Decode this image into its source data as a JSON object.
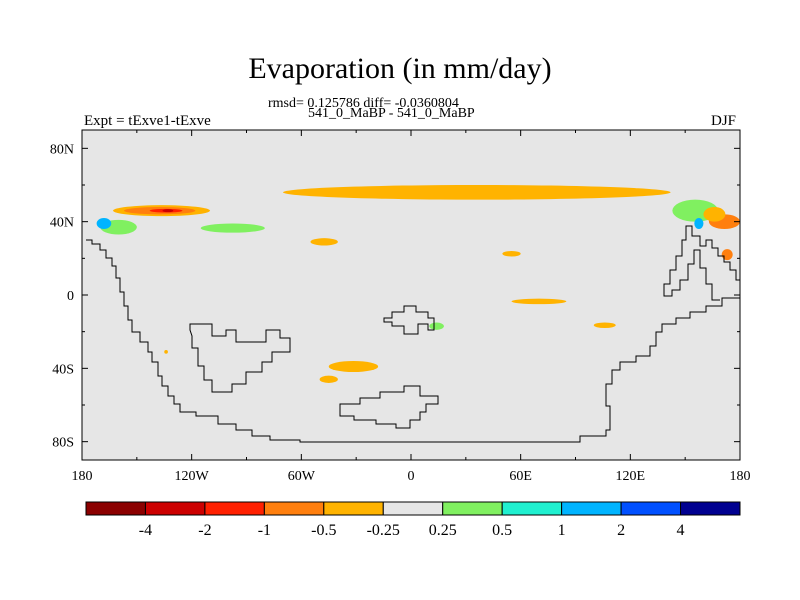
{
  "title": "Evaporation (in mm/day)",
  "stats_line": "rmsd= 0.125786 diff= -0.0360804",
  "runs_line": "541_0_MaBP - 541_0_MaBP",
  "left_label": "Expt = tExve1-tExve",
  "right_label": "DJF",
  "chart_data": {
    "type": "heatmap",
    "title": "Evaporation (in mm/day)",
    "map_projection": "cylindrical equidistant",
    "xlim": [
      -180,
      180
    ],
    "ylim": [
      -90,
      90
    ],
    "x_ticks": [
      -180,
      -120,
      -60,
      0,
      60,
      120,
      180
    ],
    "x_tick_labels": [
      "180",
      "120W",
      "60W",
      "0",
      "60E",
      "120E",
      "180"
    ],
    "y_ticks": [
      80,
      40,
      0,
      -40,
      -80
    ],
    "y_tick_labels": [
      "80N",
      "40N",
      "0",
      "40S",
      "80S"
    ],
    "missing_color": "#e6e6e6",
    "colorbar": {
      "levels": [
        -4,
        -2,
        -1,
        -0.5,
        -0.25,
        0.25,
        0.5,
        1,
        2,
        4
      ],
      "level_labels": [
        "-4",
        "-2",
        "-1",
        "-0.5",
        "-0.25",
        "0.25",
        "0.5",
        "1",
        "2",
        "4"
      ],
      "colors": [
        "#8b0000",
        "#cc0000",
        "#ff2000",
        "#ff7f0e",
        "#ffb300",
        "#e6e6e6",
        "#80f060",
        "#20f0d0",
        "#00b4ff",
        "#0050ff",
        "#000090"
      ]
    },
    "regions": [
      {
        "cls": "-0.5 to -0.25",
        "color": "#ffb300",
        "lon": [
          -70,
          142
        ],
        "lat": [
          52,
          60
        ]
      },
      {
        "cls": "-0.5 to -0.25",
        "color": "#ffb300",
        "lon": [
          -163,
          -110
        ],
        "lat": [
          43,
          49
        ]
      },
      {
        "cls": "-1 to -0.5",
        "color": "#ff7f0e",
        "lon": [
          -157,
          -118
        ],
        "lat": [
          44,
          48
        ]
      },
      {
        "cls": "-2 to -1",
        "color": "#ff2000",
        "lon": [
          -143,
          -125
        ],
        "lat": [
          45,
          47
        ]
      },
      {
        "cls": "-4 to -2",
        "color": "#cc0000",
        "lon": [
          -136,
          -130
        ],
        "lat": [
          45.5,
          46.5
        ]
      },
      {
        "cls": "0.25 to 0.5",
        "color": "#80f060",
        "lon": [
          -170,
          -150
        ],
        "lat": [
          33,
          41
        ]
      },
      {
        "cls": "0.25 to 0.5",
        "color": "#80f060",
        "lon": [
          -115,
          -80
        ],
        "lat": [
          34,
          39
        ]
      },
      {
        "cls": "1 to 2",
        "color": "#00b4ff",
        "lon": [
          -172,
          -164
        ],
        "lat": [
          36,
          42
        ]
      },
      {
        "cls": "-0.5 to -0.25",
        "color": "#ffb300",
        "lon": [
          -55,
          -40
        ],
        "lat": [
          27,
          31
        ]
      },
      {
        "cls": "-0.5 to -0.25",
        "color": "#ffb300",
        "lon": [
          50,
          60
        ],
        "lat": [
          21,
          24
        ]
      },
      {
        "cls": "-0.5 to -0.25",
        "color": "#ffb300",
        "lon": [
          55,
          85
        ],
        "lat": [
          -5,
          -2
        ]
      },
      {
        "cls": "-0.5 to -0.25",
        "color": "#ffb300",
        "lon": [
          100,
          112
        ],
        "lat": [
          -18,
          -15
        ]
      },
      {
        "cls": "0.25 to 0.5",
        "color": "#80f060",
        "lon": [
          10,
          18
        ],
        "lat": [
          -19,
          -15
        ]
      },
      {
        "cls": "-0.5 to -0.25",
        "color": "#ffb300",
        "lon": [
          -45,
          -18
        ],
        "lat": [
          -42,
          -36
        ]
      },
      {
        "cls": "-0.5 to -0.25",
        "color": "#ffb300",
        "lon": [
          -50,
          -40
        ],
        "lat": [
          -48,
          -44
        ]
      },
      {
        "cls": "-0.5 to -0.25",
        "color": "#ffb300",
        "lon": [
          -135,
          -133
        ],
        "lat": [
          -32,
          -30
        ]
      },
      {
        "cls": "0.25 to 0.5",
        "color": "#80f060",
        "lon": [
          143,
          168
        ],
        "lat": [
          40,
          52
        ]
      },
      {
        "cls": "1 to 2",
        "color": "#00b4ff",
        "lon": [
          155,
          160
        ],
        "lat": [
          36,
          42
        ]
      },
      {
        "cls": "-1 to -0.5",
        "color": "#ff7f0e",
        "lon": [
          163,
          180
        ],
        "lat": [
          36,
          44
        ]
      },
      {
        "cls": "-1 to -0.5",
        "color": "#ff7f0e",
        "lon": [
          170,
          176
        ],
        "lat": [
          19,
          25
        ]
      },
      {
        "cls": "-0.5 to -0.25",
        "color": "#ffb300",
        "lon": [
          160,
          172
        ],
        "lat": [
          40,
          48
        ]
      }
    ]
  }
}
